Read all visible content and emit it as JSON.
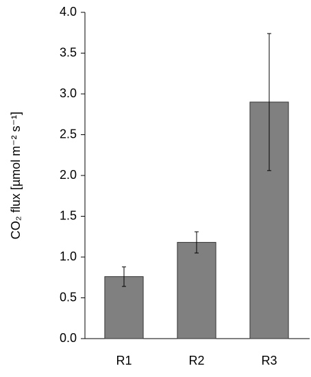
{
  "chart_data": {
    "type": "bar",
    "y_label": "CO₂ flux [µmol m⁻² s⁻¹]",
    "categories": [
      "R1",
      "R2",
      "R3"
    ],
    "values": [
      0.76,
      1.18,
      2.9
    ],
    "errors": [
      0.12,
      0.13,
      0.84
    ],
    "color": "#808080",
    "ylim": [
      0,
      4
    ],
    "yticks": [
      {
        "value": 0,
        "label": "0.0"
      },
      0.5,
      {
        "value": 1,
        "label": "1.0"
      },
      1.5,
      {
        "value": 2,
        "label": "2.0"
      },
      2.5,
      {
        "value": 3,
        "label": "3.0"
      },
      3.5,
      {
        "value": 4,
        "label": "4.0"
      }
    ],
    "grid": false
  }
}
